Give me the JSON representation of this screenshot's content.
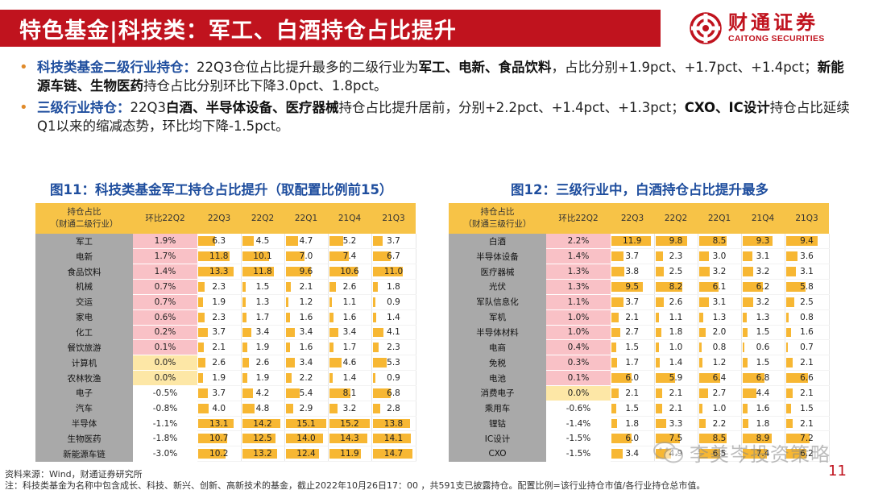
{
  "header": {
    "title": "特色基金|科技类：军工、白酒持仓占比提升",
    "logo_cn": "财通证券",
    "logo_en": "CAITONG SECURITIES",
    "brand_color": "#c0131e"
  },
  "bullets": [
    {
      "segments": [
        {
          "t": "科技类基金二级行业持仓：",
          "s": "kw"
        },
        {
          "t": "22Q3仓位占比提升最多的二级行业为",
          "s": ""
        },
        {
          "t": "军工、电新、食品饮料",
          "s": "b"
        },
        {
          "t": "，占比分别+1.9pct、+1.7pct、+1.4pct；",
          "s": ""
        },
        {
          "t": "新能源车链、生物医药",
          "s": "b"
        },
        {
          "t": "持仓占比分别环比下降3.0pct、1.8pct。",
          "s": ""
        }
      ]
    },
    {
      "segments": [
        {
          "t": "三级行业持仓：",
          "s": "kw"
        },
        {
          "t": "22Q3",
          "s": ""
        },
        {
          "t": "白酒、半导体设备、医疗器械",
          "s": "b"
        },
        {
          "t": "持仓占比提升居前，分别+2.2pct、+1.4pct、+1.3pct；",
          "s": ""
        },
        {
          "t": "CXO、IC设计",
          "s": "b"
        },
        {
          "t": "持仓占比延续Q1以来的缩减态势，环比均下降-1.5pct。",
          "s": ""
        }
      ]
    }
  ],
  "fig11": {
    "title": "图11：科技类基金军工持仓占比提升（取配置比例前15）",
    "header_name_line1": "持仓占比",
    "header_name_line2": "（财通二级行业）",
    "columns": [
      "环比22Q2",
      "22Q3",
      "22Q2",
      "22Q1",
      "21Q4",
      "21Q3"
    ],
    "rows": [
      {
        "name": "军工",
        "chg": "1.9%",
        "vals": [
          6.3,
          4.5,
          4.7,
          5.2,
          3.7
        ]
      },
      {
        "name": "电新",
        "chg": "1.7%",
        "vals": [
          11.8,
          10.1,
          7.0,
          7.4,
          6.7
        ]
      },
      {
        "name": "食品饮料",
        "chg": "1.4%",
        "vals": [
          13.3,
          11.8,
          9.6,
          10.6,
          11.0
        ]
      },
      {
        "name": "机械",
        "chg": "0.7%",
        "vals": [
          2.3,
          1.5,
          2.1,
          2.6,
          1.8
        ]
      },
      {
        "name": "交运",
        "chg": "0.7%",
        "vals": [
          1.9,
          1.3,
          1.2,
          1.1,
          0.9
        ]
      },
      {
        "name": "家电",
        "chg": "0.6%",
        "vals": [
          2.3,
          1.7,
          1.6,
          1.6,
          1.4
        ]
      },
      {
        "name": "化工",
        "chg": "0.2%",
        "vals": [
          3.7,
          3.4,
          3.4,
          3.4,
          4.1
        ]
      },
      {
        "name": "餐饮旅游",
        "chg": "0.1%",
        "vals": [
          2.1,
          1.9,
          1.6,
          1.7,
          2.3
        ]
      },
      {
        "name": "计算机",
        "chg": "0.0%",
        "vals": [
          2.6,
          2.6,
          3.4,
          4.6,
          5.3
        ]
      },
      {
        "name": "农林牧渔",
        "chg": "0.0%",
        "vals": [
          1.9,
          1.9,
          2.2,
          1.4,
          0.9
        ]
      },
      {
        "name": "电子",
        "chg": "-0.5%",
        "vals": [
          3.7,
          4.2,
          5.4,
          8.1,
          6.8
        ]
      },
      {
        "name": "汽车",
        "chg": "-0.8%",
        "vals": [
          4.0,
          4.8,
          2.9,
          3.2,
          2.8
        ]
      },
      {
        "name": "半导体",
        "chg": "-1.1%",
        "vals": [
          13.1,
          14.2,
          15.1,
          15.2,
          13.8
        ]
      },
      {
        "name": "生物医药",
        "chg": "-1.8%",
        "vals": [
          10.7,
          12.5,
          14.0,
          14.3,
          14.1
        ]
      },
      {
        "name": "新能源车链",
        "chg": "-3.0%",
        "vals": [
          10.2,
          13.2,
          12.4,
          11.9,
          14.7
        ]
      }
    ],
    "max_value": 16
  },
  "fig12": {
    "title": "图12：三级行业中，白酒持仓占比提升最多",
    "header_name_line1": "持仓占比",
    "header_name_line2": "（财通三级行业）",
    "columns": [
      "环比22Q2",
      "22Q3",
      "22Q2",
      "22Q1",
      "21Q4",
      "21Q3"
    ],
    "rows": [
      {
        "name": "白酒",
        "chg": "2.2%",
        "vals": [
          11.9,
          9.8,
          8.5,
          9.3,
          9.4
        ]
      },
      {
        "name": "半导体设备",
        "chg": "1.4%",
        "vals": [
          3.7,
          2.3,
          3.0,
          3.1,
          3.6
        ]
      },
      {
        "name": "医疗器械",
        "chg": "1.3%",
        "vals": [
          3.8,
          2.5,
          3.2,
          3.2,
          3.1
        ]
      },
      {
        "name": "光伏",
        "chg": "1.3%",
        "vals": [
          9.5,
          8.2,
          6.1,
          6.2,
          5.8
        ]
      },
      {
        "name": "军队信息化",
        "chg": "1.1%",
        "vals": [
          3.7,
          2.6,
          3.1,
          3.2,
          2.5
        ]
      },
      {
        "name": "军机",
        "chg": "1.0%",
        "vals": [
          2.1,
          1.1,
          1.3,
          1.3,
          0.8
        ]
      },
      {
        "name": "半导体材料",
        "chg": "1.0%",
        "vals": [
          2.7,
          1.8,
          2.0,
          1.5,
          1.6
        ]
      },
      {
        "name": "电商",
        "chg": "0.4%",
        "vals": [
          1.5,
          1.0,
          0.8,
          0.6,
          0.7
        ]
      },
      {
        "name": "免税",
        "chg": "0.3%",
        "vals": [
          1.7,
          1.4,
          1.2,
          1.5,
          2.1
        ]
      },
      {
        "name": "电池",
        "chg": "0.1%",
        "vals": [
          6.0,
          5.9,
          6.4,
          6.8,
          6.6
        ]
      },
      {
        "name": "消费电子",
        "chg": "0.0%",
        "vals": [
          2.1,
          2.1,
          2.7,
          4.4,
          2.1
        ]
      },
      {
        "name": "乘用车",
        "chg": "-0.6%",
        "vals": [
          1.5,
          2.1,
          1.0,
          1.6,
          1.5
        ]
      },
      {
        "name": "锂钴",
        "chg": "-1.4%",
        "vals": [
          1.8,
          3.3,
          2.2,
          1.8,
          2.1
        ]
      },
      {
        "name": "IC设计",
        "chg": "-1.5%",
        "vals": [
          6.0,
          7.5,
          8.5,
          8.9,
          7.2
        ]
      },
      {
        "name": "CXO",
        "chg": "-1.5%",
        "vals": [
          3.4,
          4.9,
          6.5,
          7.4,
          6.2
        ]
      }
    ],
    "max_value": 13
  },
  "footer": {
    "source": "资料来源：Wind，财通证券研究所",
    "note": "注：科技类基金为名称中包含成长、科技、新兴、创新、高新技术的基金，截止2022年10月26日17：00 ，共591支已披露持仓。配置比例=该行业持仓市值/各行业持仓总市值。",
    "page_number": "11",
    "watermark": "李美岑投资策略"
  }
}
